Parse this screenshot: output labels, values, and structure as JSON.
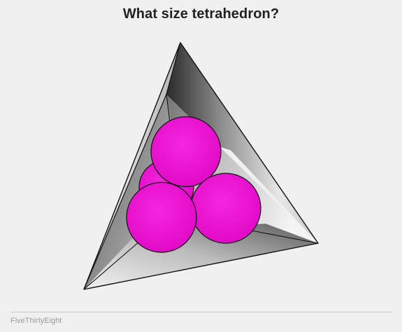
{
  "title": "What size tetrahedron?",
  "footer": {
    "brand": "FiveThirtyEight"
  },
  "colors": {
    "background": "#f0f0f0",
    "sphere": "#ee10d6",
    "outline": "#111111",
    "footer_text": "#9a9a9a"
  },
  "diagram": {
    "shape": "tetrahedron",
    "sphere_count": 4
  }
}
